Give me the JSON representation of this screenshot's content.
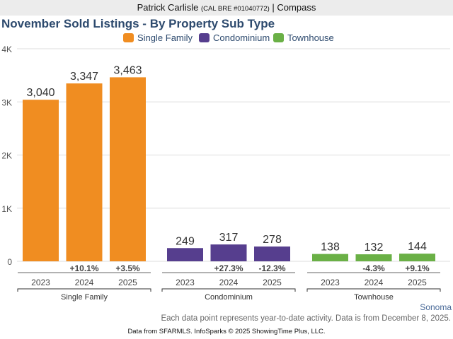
{
  "header": {
    "agent_name": "Patrick Carlisle",
    "license": "(CAL BRE #01040772)",
    "separator": "|",
    "brokerage": "Compass"
  },
  "footer": {
    "region": "Sonoma",
    "note": "Each data point represents year-to-date activity. Data is from December 8, 2025.",
    "credit": "Data from SFARMLS. InfoSparks © 2025 ShowingTime Plus, LLC."
  },
  "chart_data": {
    "type": "bar",
    "title": "November Sold Listings - By Property Sub Type",
    "xlabel": "",
    "ylabel": "",
    "ylim": [
      0,
      4000
    ],
    "yticks": [
      0,
      1000,
      2000,
      3000,
      4000
    ],
    "ytick_labels": [
      "0",
      "1K",
      "2K",
      "3K",
      "4K"
    ],
    "grid": true,
    "legend_position": "top-center",
    "categories": [
      "2023",
      "2024",
      "2025"
    ],
    "series": [
      {
        "name": "Single Family",
        "color": "#f08d21",
        "values": [
          3040,
          3347,
          3463
        ],
        "value_labels": [
          "3,040",
          "3,347",
          "3,463"
        ],
        "change_labels": [
          "",
          "+10.1%",
          "+3.5%"
        ]
      },
      {
        "name": "Condominium",
        "color": "#563e8e",
        "values": [
          249,
          317,
          278
        ],
        "value_labels": [
          "249",
          "317",
          "278"
        ],
        "change_labels": [
          "",
          "+27.3%",
          "-12.3%"
        ]
      },
      {
        "name": "Townhouse",
        "color": "#6ab046",
        "values": [
          138,
          132,
          144
        ],
        "value_labels": [
          "138",
          "132",
          "144"
        ],
        "change_labels": [
          "",
          "-4.3%",
          "+9.1%"
        ]
      }
    ]
  }
}
